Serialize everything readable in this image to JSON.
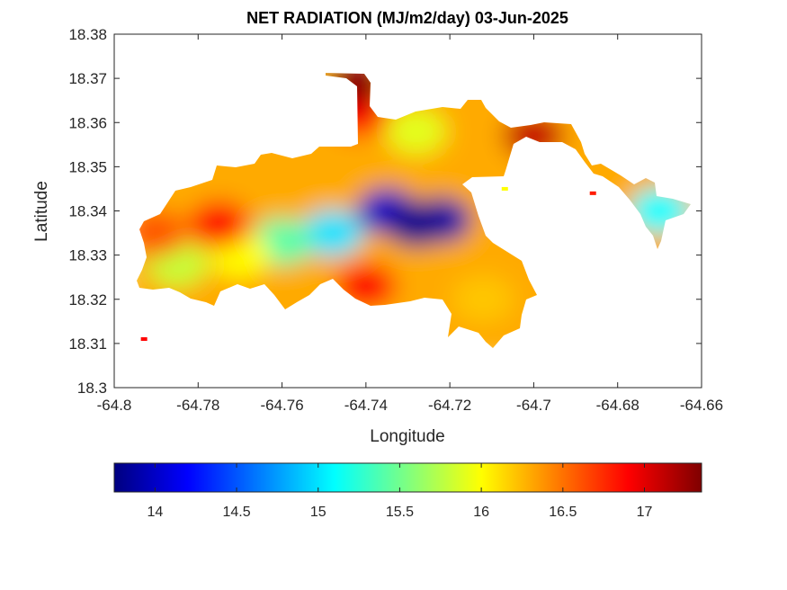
{
  "chart_data": {
    "type": "heatmap",
    "title": "NET RADIATION (MJ/m2/day) 03-Jun-2025",
    "xlabel": "Longitude",
    "ylabel": "Latitude",
    "xlim": [
      -64.8,
      -64.66
    ],
    "ylim": [
      18.3,
      18.38
    ],
    "xticks": [
      "-64.8",
      "-64.78",
      "-64.76",
      "-64.74",
      "-64.72",
      "-64.7",
      "-64.68",
      "-64.66"
    ],
    "yticks": [
      "18.3",
      "18.31",
      "18.32",
      "18.33",
      "18.34",
      "18.35",
      "18.36",
      "18.37",
      "18.38"
    ],
    "colormap": "jet",
    "colorbar": {
      "range": [
        13.75,
        17.35
      ],
      "ticks": [
        "14",
        "14.5",
        "15",
        "15.5",
        "16",
        "16.5",
        "17"
      ],
      "orientation": "horizontal",
      "location": "bottom"
    },
    "grid": false,
    "field": {
      "coverage": "St. Thomas island outline; no data over sea",
      "minimum": {
        "lon": -64.728,
        "lat": 18.337,
        "value": 13.8
      },
      "maximum": {
        "lon": -64.742,
        "lat": 18.369,
        "value": 17.3
      },
      "regions": [
        {
          "lon": -64.735,
          "lat": 18.34,
          "value": 14.0
        },
        {
          "lon": -64.722,
          "lat": 18.338,
          "value": 13.9
        },
        {
          "lon": -64.748,
          "lat": 18.335,
          "value": 15.0
        },
        {
          "lon": -64.76,
          "lat": 18.333,
          "value": 15.4
        },
        {
          "lon": -64.77,
          "lat": 18.33,
          "value": 16.0
        },
        {
          "lon": -64.785,
          "lat": 18.328,
          "value": 15.8
        },
        {
          "lon": -64.775,
          "lat": 18.337,
          "value": 16.9
        },
        {
          "lon": -64.79,
          "lat": 18.335,
          "value": 16.6
        },
        {
          "lon": -64.74,
          "lat": 18.323,
          "value": 16.9
        },
        {
          "lon": -64.728,
          "lat": 18.358,
          "value": 15.9
        },
        {
          "lon": -64.715,
          "lat": 18.352,
          "value": 16.3
        },
        {
          "lon": -64.742,
          "lat": 18.362,
          "value": 16.9
        },
        {
          "lon": -64.7,
          "lat": 18.357,
          "value": 17.1
        },
        {
          "lon": -64.67,
          "lat": 18.34,
          "value": 15.1
        },
        {
          "lon": -64.712,
          "lat": 18.32,
          "value": 16.2
        }
      ]
    }
  }
}
